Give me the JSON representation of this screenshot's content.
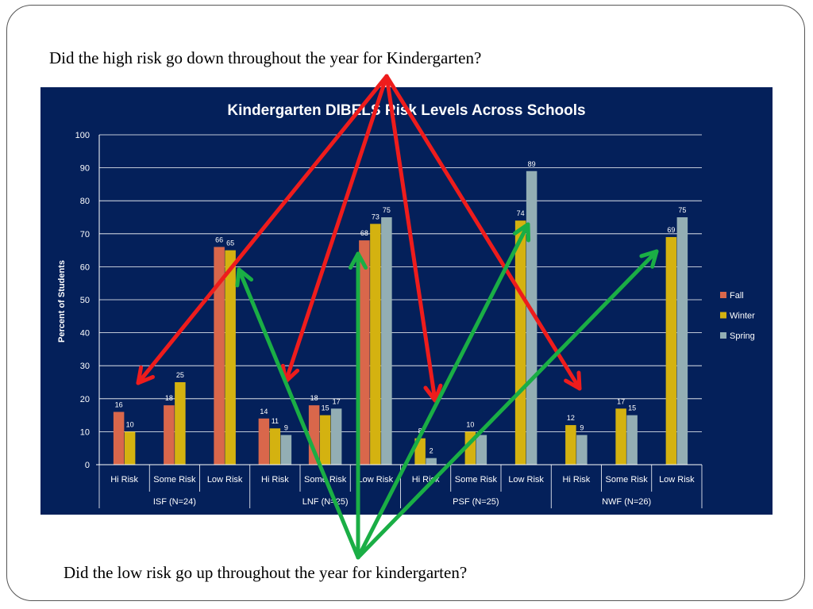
{
  "questions": {
    "top": "Did the high risk go down throughout the year for Kindergarten?",
    "bottom": "Did the low risk go up throughout the year for kindergarten?"
  },
  "colors": {
    "panel_background": "#04205a",
    "fall": "#d9674b",
    "winter": "#d4b210",
    "spring": "#93aeb4",
    "down_arrows": "#ee1c1c",
    "up_arrows": "#1aae45"
  },
  "chart_data": {
    "type": "bar",
    "title": "Kindergarten DIBELS Risk Levels Across Schools",
    "ylabel": "Percent of Students",
    "xlabel": "",
    "ylim": [
      0,
      100
    ],
    "yticks": [
      0,
      10,
      20,
      30,
      40,
      50,
      60,
      70,
      80,
      90,
      100
    ],
    "grid": true,
    "legend_position": "right",
    "groups": [
      {
        "name": "ISF (N=24)",
        "categories": [
          "Hi Risk",
          "Some Risk",
          "Low Risk"
        ]
      },
      {
        "name": "LNF (N=25)",
        "categories": [
          "Hi Risk",
          "Some Risk",
          "Low Risk"
        ]
      },
      {
        "name": "PSF (N=25)",
        "categories": [
          "Hi Risk",
          "Some Risk",
          "Low Risk"
        ]
      },
      {
        "name": "NWF (N=26)",
        "categories": [
          "Hi Risk",
          "Some Risk",
          "Low Risk"
        ]
      }
    ],
    "series": [
      {
        "name": "Fall",
        "values": [
          16,
          18,
          66,
          14,
          18,
          68,
          null,
          null,
          null,
          null,
          null,
          null
        ]
      },
      {
        "name": "Winter",
        "values": [
          10,
          25,
          65,
          11,
          15,
          73,
          8,
          10,
          74,
          12,
          17,
          69
        ]
      },
      {
        "name": "Spring",
        "values": [
          null,
          null,
          null,
          9,
          17,
          75,
          2,
          9,
          89,
          9,
          15,
          75
        ]
      }
    ],
    "data_labels": [
      [
        "16",
        "18",
        "66",
        "14",
        "18",
        "68",
        null,
        null,
        null,
        null,
        null,
        null
      ],
      [
        "10",
        "25",
        "65",
        "11",
        "15",
        "73",
        "8",
        "10",
        "74",
        "12",
        "17",
        "69"
      ],
      [
        null,
        null,
        null,
        "9",
        "17",
        "75",
        "2",
        null,
        "89",
        "9",
        "15",
        "75"
      ]
    ]
  }
}
